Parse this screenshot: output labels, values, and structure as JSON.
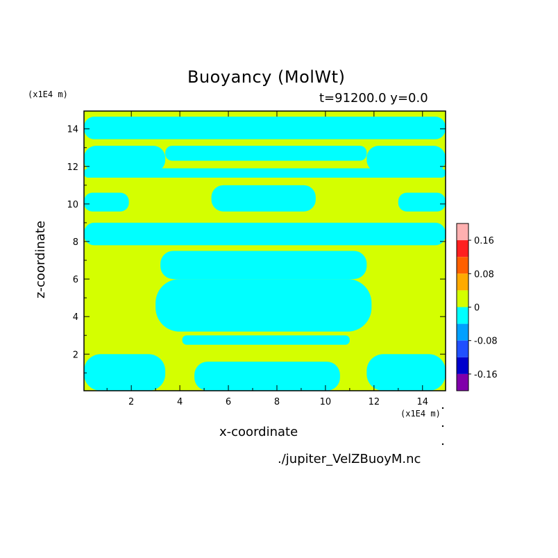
{
  "chart_data": {
    "type": "heatmap",
    "title": "Buoyancy (MolWt)",
    "subtitle": "t=91200.0 y=0.0",
    "xlabel": "x-coordinate",
    "ylabel": "z-coordinate",
    "x_unit": "(x1E4 m)",
    "y_unit": "(x1E4 m)",
    "source": "./jupiter_VelZBuoyM.nc",
    "xlim": [
      0.05,
      14.95
    ],
    "ylim": [
      0.05,
      14.95
    ],
    "xticks": [
      "2",
      "4",
      "6",
      "8",
      "10",
      "12",
      "14"
    ],
    "yticks": [
      "2",
      "4",
      "6",
      "8",
      "10",
      "12",
      "14"
    ],
    "colorbar": {
      "ticks": [
        "0.16",
        "0.08",
        "0",
        "-0.08",
        "-0.16"
      ],
      "levels": [
        {
          "color": "#ffb0b0"
        },
        {
          "color": "#ff2020"
        },
        {
          "color": "#ff6000"
        },
        {
          "color": "#ffaa00"
        },
        {
          "color": "#d4ff00"
        },
        {
          "color": "#00ffff"
        },
        {
          "color": "#00a0ff"
        },
        {
          "color": "#2050ff"
        },
        {
          "color": "#0000cc"
        },
        {
          "color": "#8000aa"
        }
      ]
    },
    "background_level_color": "#d4ff00",
    "negative_level_color": "#00ffff",
    "negative_regions": [
      {
        "x0": 0.05,
        "x1": 14.95,
        "y0": 13.45,
        "y1": 14.65
      },
      {
        "x0": 0.05,
        "x1": 3.4,
        "y0": 11.7,
        "y1": 13.1
      },
      {
        "x0": 3.4,
        "x1": 11.7,
        "y0": 12.3,
        "y1": 13.1
      },
      {
        "x0": 11.7,
        "x1": 14.95,
        "y0": 11.7,
        "y1": 13.1
      },
      {
        "x0": 0.05,
        "x1": 14.95,
        "y0": 11.4,
        "y1": 11.9
      },
      {
        "x0": 0.05,
        "x1": 1.9,
        "y0": 9.6,
        "y1": 10.6
      },
      {
        "x0": 5.3,
        "x1": 9.6,
        "y0": 9.6,
        "y1": 11.0
      },
      {
        "x0": 13.0,
        "x1": 14.95,
        "y0": 9.6,
        "y1": 10.6
      },
      {
        "x0": 0.05,
        "x1": 14.95,
        "y0": 7.8,
        "y1": 9.0
      },
      {
        "x0": 3.2,
        "x1": 11.7,
        "y0": 6.0,
        "y1": 7.5
      },
      {
        "x0": 3.0,
        "x1": 11.9,
        "y0": 3.2,
        "y1": 6.0
      },
      {
        "x0": 4.1,
        "x1": 11.0,
        "y0": 2.5,
        "y1": 3.0
      },
      {
        "x0": 0.05,
        "x1": 3.4,
        "y0": 0.05,
        "y1": 2.0
      },
      {
        "x0": 4.6,
        "x1": 10.6,
        "y0": 0.05,
        "y1": 1.6
      },
      {
        "x0": 11.7,
        "x1": 14.95,
        "y0": 0.05,
        "y1": 2.0
      }
    ],
    "grid": false
  }
}
